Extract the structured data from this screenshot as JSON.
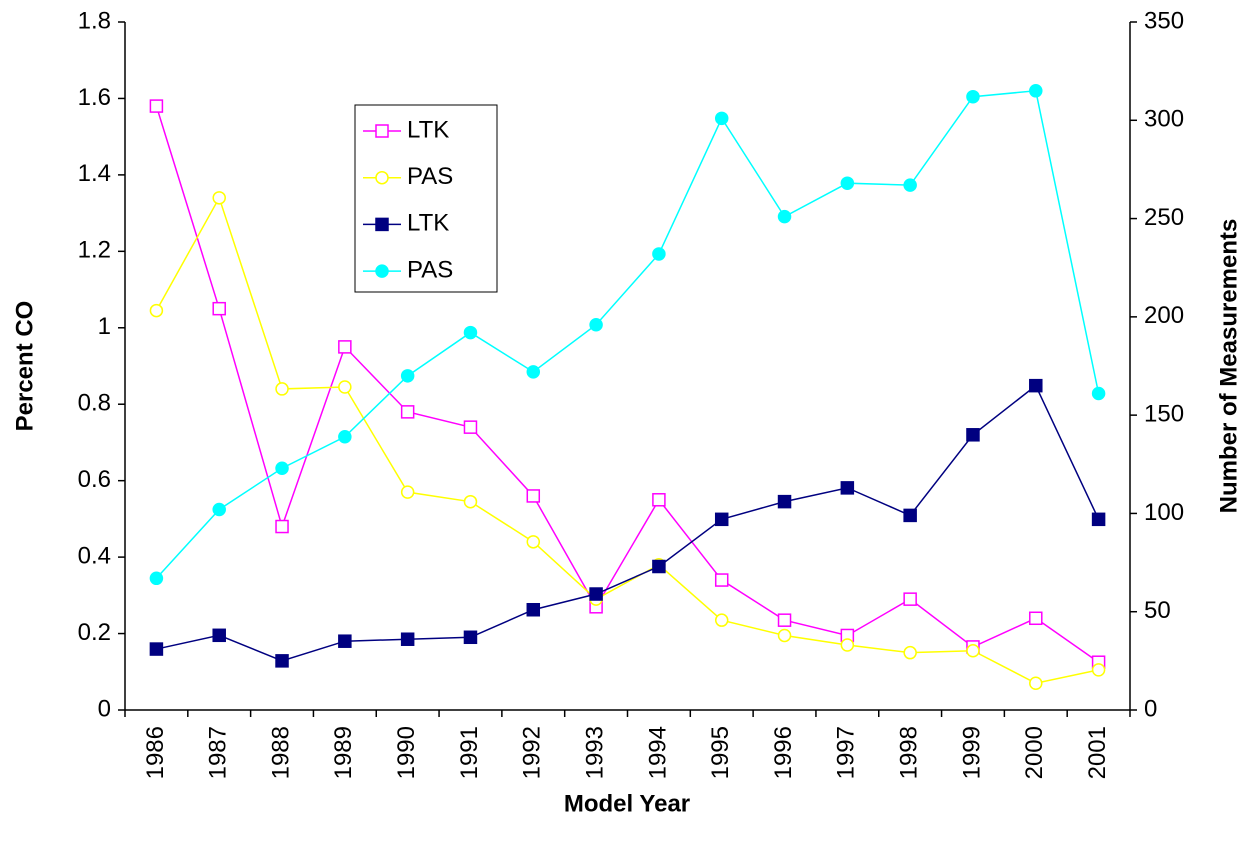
{
  "chart_data": {
    "type": "line",
    "x_label": "Model Year",
    "y_label": "Percent CO",
    "y2_label": "Number of Measurements",
    "categories": [
      "1986",
      "1987",
      "1988",
      "1989",
      "1990",
      "1991",
      "1992",
      "1993",
      "1994",
      "1995",
      "1996",
      "1997",
      "1998",
      "1999",
      "2000",
      "2001"
    ],
    "ylim": [
      0,
      1.8
    ],
    "yticks": [
      0,
      0.2,
      0.4,
      0.6,
      0.8,
      1,
      1.2,
      1.4,
      1.6,
      1.8
    ],
    "y2lim": [
      0,
      350
    ],
    "y2ticks": [
      0,
      50,
      100,
      150,
      200,
      250,
      300,
      350
    ],
    "legend": "upper-left",
    "series": [
      {
        "name": "LTK",
        "color": "#ff00ff",
        "marker": "square-open",
        "values": [
          1.58,
          1.05,
          0.48,
          0.95,
          0.78,
          0.74,
          0.56,
          0.27,
          0.55,
          0.34,
          0.235,
          0.195,
          0.29,
          0.165,
          0.24,
          0.125
        ]
      },
      {
        "name": "PAS",
        "color": "#ffff00",
        "marker": "circle-open",
        "values": [
          1.045,
          1.34,
          0.84,
          0.845,
          0.57,
          0.545,
          0.44,
          0.29,
          0.38,
          0.235,
          0.195,
          0.17,
          0.15,
          0.155,
          0.07,
          0.105
        ]
      },
      {
        "name": "LTK",
        "color": "#000080",
        "marker": "square",
        "axis": "y2",
        "values": [
          31,
          38,
          25,
          35,
          36,
          37,
          51,
          59,
          73,
          97,
          106,
          113,
          99,
          140,
          165,
          97
        ]
      },
      {
        "name": "PAS",
        "color": "#00ffff",
        "marker": "circle",
        "axis": "y2",
        "values": [
          67,
          102,
          123,
          139,
          170,
          192,
          172,
          196,
          232,
          301,
          251,
          268,
          267,
          312,
          315,
          161
        ]
      }
    ]
  }
}
